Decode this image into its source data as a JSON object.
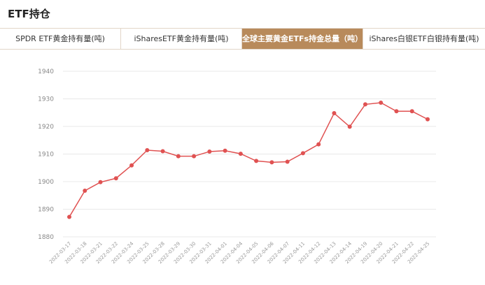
{
  "header": {
    "title": "ETF持仓"
  },
  "tabs": [
    {
      "label": "SPDR ETF黄金持有量(吨)",
      "active": false
    },
    {
      "label": "iSharesETF黄金持有量(吨)",
      "active": false
    },
    {
      "label": "全球主要黄金ETFs持金总量（吨）",
      "active": true
    },
    {
      "label": "iShares白银ETF白银持有量(吨)",
      "active": false
    }
  ],
  "colors": {
    "accent": "#b88a5b",
    "line": "#e05252",
    "grid": "#e8e8e8"
  },
  "chart_data": {
    "type": "line",
    "title": "",
    "xlabel": "",
    "ylabel": "",
    "ylim": [
      1880,
      1940
    ],
    "yticks": [
      1880,
      1890,
      1900,
      1910,
      1920,
      1930,
      1940
    ],
    "grid": true,
    "x": [
      "2022-03-17",
      "2022-03-18",
      "2022-03-21",
      "2022-03-22",
      "2022-03-24",
      "2022-03-25",
      "2022-03-28",
      "2022-03-29",
      "2022-03-30",
      "2022-03-31",
      "2022-04-01",
      "2022-04-04",
      "2022-04-05",
      "2022-04-06",
      "2022-04-07",
      "2022-04-11",
      "2022-04-12",
      "2022-04-13",
      "2022-04-14",
      "2022-04-19",
      "2022-04-20",
      "2022-04-21",
      "2022-04-22",
      "2022-04-25"
    ],
    "series": [
      {
        "values": [
          1887.2,
          1896.7,
          1899.8,
          1901.2,
          1905.9,
          1911.4,
          1911.0,
          1909.2,
          1909.2,
          1910.9,
          1911.2,
          1910.1,
          1907.5,
          1907.0,
          1907.2,
          1910.3,
          1913.5,
          1924.8,
          1919.9,
          1928.0,
          1928.6,
          1925.5,
          1925.5,
          1922.6
        ]
      }
    ]
  }
}
